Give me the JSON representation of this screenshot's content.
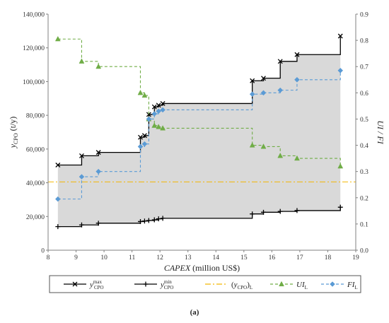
{
  "chart_data": {
    "type": "line",
    "xlabel": "CAPEX (million US$)",
    "ylabel_left": "yCPO (t/y)",
    "ylabel_right": "UI / FI",
    "xlim": [
      8,
      19
    ],
    "ylim_left": [
      0,
      140000
    ],
    "ylim_right": [
      0,
      0.9
    ],
    "x_ticks": [
      "8",
      "9",
      "10",
      "11",
      "12",
      "13",
      "14",
      "15",
      "16",
      "17",
      "18",
      "19"
    ],
    "y_left_ticks": [
      "0",
      "20,000",
      "40,000",
      "60,000",
      "80,000",
      "100,000",
      "120,000",
      "140,000"
    ],
    "y_right_ticks": [
      "0.0",
      "0.1",
      "0.2",
      "0.3",
      "0.4",
      "0.5",
      "0.6",
      "0.7",
      "0.8",
      "0.9"
    ],
    "grid": false,
    "series": [
      {
        "name": "y_CPO^max",
        "axis": "left",
        "color": "#000000",
        "marker": "x",
        "dash": "",
        "step": true,
        "x": [
          8.35,
          9.2,
          9.8,
          11.3,
          11.45,
          11.6,
          11.8,
          11.95,
          12.1,
          15.3,
          15.7,
          16.3,
          16.9,
          18.45
        ],
        "y": [
          50500,
          56000,
          58000,
          67000,
          68000,
          80500,
          85000,
          86000,
          87000,
          100500,
          102000,
          112000,
          116000,
          127000
        ]
      },
      {
        "name": "y_CPO^min",
        "axis": "left",
        "color": "#000000",
        "marker": "+",
        "dash": "",
        "step": true,
        "x": [
          8.35,
          9.2,
          9.8,
          11.3,
          11.45,
          11.6,
          11.8,
          11.95,
          12.1,
          15.3,
          15.7,
          16.3,
          16.9,
          18.45
        ],
        "y": [
          14000,
          15000,
          16000,
          17000,
          17300,
          17600,
          18000,
          18600,
          18900,
          21500,
          22500,
          23000,
          23500,
          25500
        ]
      },
      {
        "name": "(y_CPO)_L",
        "axis": "left",
        "color": "#f2b705",
        "marker": "",
        "dash": "8,3,2,3",
        "step": false,
        "x": [
          8,
          19
        ],
        "y": [
          40500,
          40500
        ]
      },
      {
        "name": "UI_L",
        "axis": "right",
        "color": "#70ad47",
        "marker": "triangle",
        "dash": "4,3",
        "step": true,
        "x": [
          8.35,
          9.2,
          9.8,
          11.3,
          11.45,
          11.6,
          11.8,
          11.95,
          12.1,
          15.3,
          15.7,
          16.3,
          16.9,
          18.45
        ],
        "y": [
          0.805,
          0.72,
          0.7,
          0.6,
          0.59,
          0.5,
          0.475,
          0.47,
          0.465,
          0.4,
          0.395,
          0.36,
          0.35,
          0.32
        ]
      },
      {
        "name": "FI_L",
        "axis": "right",
        "color": "#5b9bd5",
        "marker": "diamond",
        "dash": "4,3",
        "step": true,
        "x": [
          8.35,
          9.2,
          9.8,
          11.3,
          11.45,
          11.6,
          11.8,
          11.95,
          12.1,
          15.3,
          15.7,
          16.3,
          16.9,
          18.45
        ],
        "y": [
          0.195,
          0.28,
          0.3,
          0.395,
          0.405,
          0.5,
          0.52,
          0.53,
          0.535,
          0.595,
          0.6,
          0.61,
          0.65,
          0.685
        ]
      }
    ],
    "legend": {
      "placement": "bottom",
      "items": [
        {
          "main": "y",
          "sup": "max",
          "sub": "CPO",
          "paren": false,
          "color": "#000000",
          "marker": "x",
          "dash": ""
        },
        {
          "main": "y",
          "sup": "min",
          "sub": "CPO",
          "paren": false,
          "color": "#000000",
          "marker": "+",
          "dash": ""
        },
        {
          "main": "y",
          "sup": "",
          "sub": "CPO",
          "paren": true,
          "tail": "L",
          "color": "#f2b705",
          "marker": "",
          "dash": "8,3,2,3"
        },
        {
          "main": "UI",
          "sup": "",
          "sub": "L",
          "paren": false,
          "color": "#70ad47",
          "marker": "triangle",
          "dash": "4,3"
        },
        {
          "main": "FI",
          "sup": "",
          "sub": "L",
          "paren": false,
          "color": "#5b9bd5",
          "marker": "diamond",
          "dash": "4,3"
        }
      ]
    },
    "shade_between": [
      "y_CPO^max",
      "y_CPO^min"
    ],
    "shade_color": "#d9d9d9"
  },
  "caption": "(a)"
}
